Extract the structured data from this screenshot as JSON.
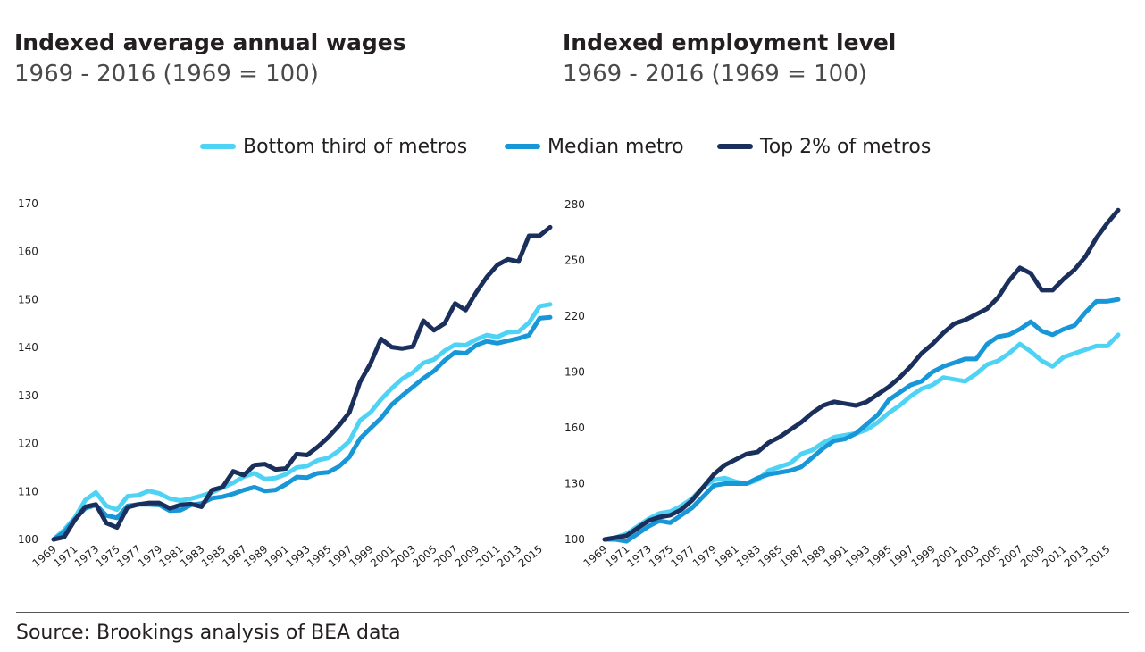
{
  "chart_data": [
    {
      "type": "line",
      "title": "Indexed average annual wages",
      "subtitle": "1969 - 2016 (1969 = 100)",
      "x": [
        1969,
        1970,
        1971,
        1972,
        1973,
        1974,
        1975,
        1976,
        1977,
        1978,
        1979,
        1980,
        1981,
        1982,
        1983,
        1984,
        1985,
        1986,
        1987,
        1988,
        1989,
        1990,
        1991,
        1992,
        1993,
        1994,
        1995,
        1996,
        1997,
        1998,
        1999,
        2000,
        2001,
        2002,
        2003,
        2004,
        2005,
        2006,
        2007,
        2008,
        2009,
        2010,
        2011,
        2012,
        2013,
        2014,
        2015,
        2016
      ],
      "x_tick_labels": [
        "1969",
        "1971",
        "1973",
        "1975",
        "1977",
        "1979",
        "1981",
        "1983",
        "1985",
        "1987",
        "1989",
        "1991",
        "1993",
        "1995",
        "1997",
        "1999",
        "2001",
        "2003",
        "2005",
        "2007",
        "2009",
        "2011",
        "2013",
        "2015"
      ],
      "ylim": [
        100,
        170
      ],
      "yticks": [
        100,
        110,
        120,
        130,
        140,
        150,
        160,
        170
      ],
      "series": [
        {
          "name": "Bottom third of metros",
          "color": "#4fd3f5",
          "values": [
            100,
            102,
            104.5,
            108.2,
            109.8,
            107,
            106.2,
            109,
            109.2,
            110.1,
            109.6,
            108.5,
            108.1,
            108.5,
            109.1,
            109.8,
            110.8,
            111.8,
            113.1,
            113.8,
            112.6,
            112.8,
            113.6,
            115,
            115.3,
            116.5,
            117,
            118.5,
            120.5,
            124.8,
            126.5,
            129.2,
            131.5,
            133.5,
            134.8,
            136.8,
            137.5,
            139.3,
            140.6,
            140.5,
            141.7,
            142.6,
            142.2,
            143.2,
            143.3,
            145.2,
            148.6,
            149
          ]
        },
        {
          "name": "Median metro",
          "color": "#1796d8",
          "values": [
            100,
            101.5,
            104.2,
            106.5,
            107.2,
            105,
            104.5,
            107,
            107.3,
            107.3,
            107.2,
            106,
            106.1,
            107.2,
            107.5,
            108.6,
            108.9,
            109.5,
            110.3,
            110.9,
            110.1,
            110.3,
            111.5,
            113,
            112.9,
            113.8,
            114,
            115.2,
            117.2,
            121,
            123.2,
            125.3,
            128.1,
            130,
            131.8,
            133.6,
            135.1,
            137.3,
            139,
            138.8,
            140.5,
            141.3,
            140.9,
            141.4,
            141.9,
            142.6,
            146.1,
            146.3
          ]
        },
        {
          "name": "Top 2% of metros",
          "color": "#1a2f5c",
          "values": [
            100,
            100.5,
            104,
            106.8,
            107.3,
            103.4,
            102.5,
            106.7,
            107.3,
            107.6,
            107.6,
            106.5,
            107.2,
            107.4,
            106.8,
            110.3,
            110.9,
            114.2,
            113.4,
            115.5,
            115.7,
            114.6,
            114.8,
            117.8,
            117.6,
            119.3,
            121.3,
            123.7,
            126.5,
            132.8,
            136.7,
            141.8,
            140.1,
            139.8,
            140.2,
            145.6,
            143.6,
            145,
            149.2,
            147.8,
            151.5,
            154.7,
            157.2,
            158.4,
            157.9,
            163.3,
            163.3,
            165.1
          ]
        }
      ]
    },
    {
      "type": "line",
      "title": "Indexed employment level",
      "subtitle": "1969 - 2016 (1969 = 100)",
      "x": [
        1969,
        1970,
        1971,
        1972,
        1973,
        1974,
        1975,
        1976,
        1977,
        1978,
        1979,
        1980,
        1981,
        1982,
        1983,
        1984,
        1985,
        1986,
        1987,
        1988,
        1989,
        1990,
        1991,
        1992,
        1993,
        1994,
        1995,
        1996,
        1997,
        1998,
        1999,
        2000,
        2001,
        2002,
        2003,
        2004,
        2005,
        2006,
        2007,
        2008,
        2009,
        2010,
        2011,
        2012,
        2013,
        2014,
        2015,
        2016
      ],
      "x_tick_labels": [
        "1969",
        "1971",
        "1973",
        "1975",
        "1977",
        "1979",
        "1981",
        "1983",
        "1985",
        "1987",
        "1989",
        "1991",
        "1993",
        "1995",
        "1997",
        "1999",
        "2001",
        "2003",
        "2005",
        "2007",
        "2009",
        "2011",
        "2013",
        "2015"
      ],
      "ylim": [
        100,
        280
      ],
      "yticks": [
        100,
        130,
        160,
        190,
        220,
        250,
        280
      ],
      "series": [
        {
          "name": "Bottom third of metros",
          "color": "#4fd3f5",
          "values": [
            100,
            101,
            103,
            107,
            111,
            114,
            115,
            118,
            122,
            128,
            132,
            133,
            131,
            130,
            132,
            137,
            139,
            141,
            146,
            148,
            152,
            155,
            156,
            157,
            159,
            163,
            168,
            172,
            177,
            181,
            183,
            187,
            186,
            185,
            189,
            194,
            196,
            200,
            205,
            201,
            196,
            193,
            198,
            200,
            202,
            204,
            204,
            210
          ]
        },
        {
          "name": "Median metro",
          "color": "#1796d8",
          "values": [
            100,
            100,
            99,
            103,
            107,
            110,
            109,
            113,
            117,
            123,
            129,
            130,
            130,
            130,
            133,
            135,
            136,
            137,
            139,
            144,
            149,
            153,
            154,
            157,
            162,
            167,
            175,
            179,
            183,
            185,
            190,
            193,
            195,
            197,
            197,
            205,
            209,
            210,
            213,
            217,
            212,
            210,
            213,
            215,
            222,
            228,
            228,
            229
          ]
        },
        {
          "name": "Top 2% of metros",
          "color": "#1a2f5c",
          "values": [
            100,
            101,
            102,
            106,
            110,
            112,
            113,
            116,
            121,
            128,
            135,
            140,
            143,
            146,
            147,
            152,
            155,
            159,
            163,
            168,
            172,
            174,
            173,
            172,
            174,
            178,
            182,
            187,
            193,
            200,
            205,
            211,
            216,
            218,
            221,
            224,
            230,
            239,
            246,
            243,
            234,
            234,
            240,
            245,
            252,
            262,
            270,
            277
          ]
        }
      ]
    }
  ],
  "source": "Source: Brookings analysis of BEA data"
}
